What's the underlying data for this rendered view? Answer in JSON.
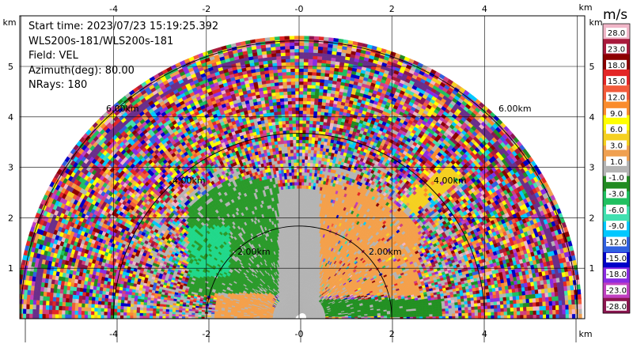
{
  "info": {
    "start_time": "Start time: 2023/07/23 15:19:25.392",
    "instrument": "WLS200s-181/WLS200s-181",
    "field": "Field: VEL",
    "azimuth": "Azimuth(deg): 80.00",
    "nrays": "NRays: 180"
  },
  "axes": {
    "x_ticks": [
      "-4",
      "-2",
      "-0",
      "2",
      "4"
    ],
    "y_ticks": [
      "1",
      "2",
      "3",
      "4",
      "5"
    ],
    "unit_label": "km"
  },
  "range_rings": [
    "2.00km",
    "4.00km",
    "6.00km"
  ],
  "colorbar": {
    "unit": "m/s",
    "ticks": [
      "28.0",
      "23.0",
      "18.0",
      "15.0",
      "12.0",
      "9.0",
      "6.0",
      "3.0",
      "1.0",
      "-1.0",
      "-3.0",
      "-6.0",
      "-9.0",
      "-12.0",
      "-15.0",
      "-18.0",
      "-23.0",
      "-28.0"
    ],
    "colors": [
      "#f0b6c8",
      "#a81a3c",
      "#8b0000",
      "#e32626",
      "#f25a3a",
      "#fa8c2c",
      "#ffff00",
      "#f5d020",
      "#f0a050",
      "#b4b4b4",
      "#228b22",
      "#20c060",
      "#40e0b0",
      "#00c8ff",
      "#3060e0",
      "#0000c8",
      "#8a2be2",
      "#c040c0",
      "#8b1650"
    ]
  },
  "colors": {
    "ground_gray": "#b4b4b4",
    "near_orange": "#f4a04a",
    "near_green": "#229022",
    "mid_green": "#2a9a2a",
    "cyan_green": "#20d88a"
  }
}
